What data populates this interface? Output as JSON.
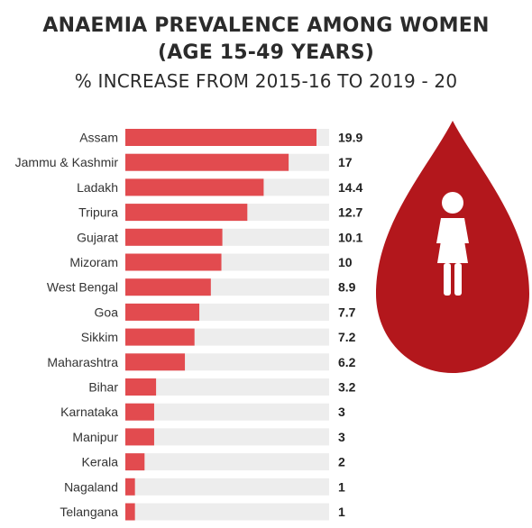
{
  "title_line1": "ANAEMIA PREVALENCE AMONG WOMEN",
  "title_line2": "(AGE 15-49 YEARS)",
  "subtitle": "% INCREASE FROM 2015-16 TO 2019 - 20",
  "colors": {
    "bar": "#e24b4f",
    "track": "#ededed",
    "drop": "#b3171c",
    "figure": "#ffffff"
  },
  "icons": [
    "blood-drop-icon",
    "woman-icon"
  ],
  "chart_data": {
    "type": "bar",
    "orientation": "horizontal",
    "categories": [
      "Assam",
      "Jammu & Kashmir",
      "Ladakh",
      "Tripura",
      "Gujarat",
      "Mizoram",
      "West Bengal",
      "Goa",
      "Sikkim",
      "Maharashtra",
      "Bihar",
      "Karnataka",
      "Manipur",
      "Kerala",
      "Nagaland",
      "Telangana"
    ],
    "values": [
      19.9,
      17,
      14.4,
      12.7,
      10.1,
      10,
      8.9,
      7.7,
      7.2,
      6.2,
      3.2,
      3,
      3,
      2,
      1,
      1
    ],
    "value_labels": [
      "19.9",
      "17",
      "14.4",
      "12.7",
      "10.1",
      "10",
      "8.9",
      "7.7",
      "7.2",
      "6.2",
      "3.2",
      "3",
      "3",
      "2",
      "1",
      "1"
    ],
    "title": "% INCREASE FROM 2015-16 TO 2019 - 20",
    "xlim": [
      0,
      21
    ],
    "grid": false,
    "legend": "none"
  }
}
